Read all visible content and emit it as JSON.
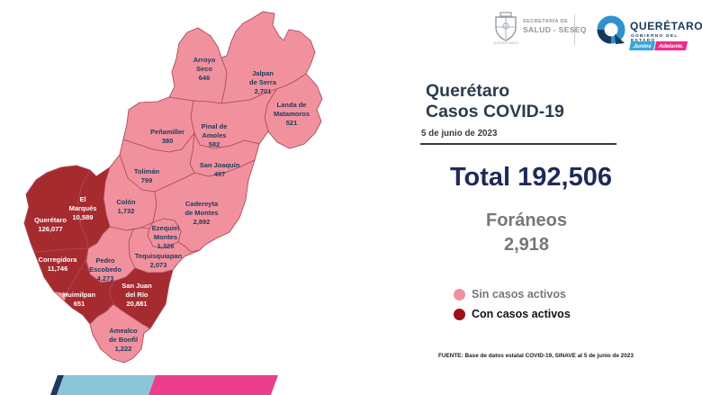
{
  "header": {
    "seseq": {
      "top": "SECRETARÍA DE",
      "bottom": "SALUD - SESEQ",
      "crest_caption": "QUERÉTARO"
    },
    "estado": {
      "brand": "QUERÉTARO",
      "subtitle": "GOBIERNO DEL ESTADO",
      "badge_left": "Juntos",
      "badge_right": "Adelante.",
      "badge_left_color": "#35a8dc",
      "badge_right_color": "#ec2e8a"
    }
  },
  "panel": {
    "title_line1": "Querétaro",
    "title_line2": "Casos COVID-19",
    "date": "5 de junio de 2023",
    "total_label": "Total",
    "total_value": "192,506",
    "foraneos_label": "Foráneos",
    "foraneos_value": "2,918",
    "legend": [
      {
        "label": "Sin casos activos",
        "swatch": "#f0919f"
      },
      {
        "label": "Con casos activos",
        "swatch": "#9b1016"
      }
    ],
    "source": "FUENTE: Base de datos estatal  COVID-19, SINAVE  al 5 de junio de 2023"
  },
  "map_colors": {
    "inactive": "#f2919e",
    "active": "#a62b2f",
    "border": "#a84c55",
    "label_inactive": "#1d3a5c",
    "label_active": "#ffffff"
  },
  "chart_data": {
    "type": "choropleth",
    "title": "Querétaro Casos COVID-19",
    "date": "5 de junio de 2023",
    "total": 192506,
    "foraneos": 2918,
    "legend": [
      "Sin casos activos",
      "Con casos activos"
    ],
    "municipalities": [
      {
        "id": "arroyo-seco",
        "name": "Arroyo Seco",
        "cases": 646,
        "active": false,
        "lines": [
          "Arroyo",
          "Seco",
          "646"
        ]
      },
      {
        "id": "jalpan",
        "name": "Jalpan de Serra",
        "cases": 2701,
        "active": false,
        "lines": [
          "Jalpan",
          "de Serra",
          "2,701"
        ]
      },
      {
        "id": "landa",
        "name": "Landa de Matamoros",
        "cases": 521,
        "active": false,
        "lines": [
          "Landa de",
          "Matamoros",
          "521"
        ]
      },
      {
        "id": "penamiller",
        "name": "Peñamiller",
        "cases": 380,
        "active": false,
        "lines": [
          "Peñamiller",
          "380"
        ]
      },
      {
        "id": "pinal",
        "name": "Pinal de Amoles",
        "cases": 582,
        "active": false,
        "lines": [
          "Pinal de",
          "Amoles",
          "582"
        ]
      },
      {
        "id": "san-joaquin",
        "name": "San Joaquín",
        "cases": 497,
        "active": false,
        "lines": [
          "San Joaquín",
          "497"
        ]
      },
      {
        "id": "toliman",
        "name": "Tolimán",
        "cases": 799,
        "active": false,
        "lines": [
          "Tolimán",
          "799"
        ]
      },
      {
        "id": "colon",
        "name": "Colón",
        "cases": 1732,
        "active": false,
        "lines": [
          "Colón",
          "1,732"
        ]
      },
      {
        "id": "cadereyta",
        "name": "Cadereyta de Montes",
        "cases": 2892,
        "active": false,
        "lines": [
          "Cadereyta",
          "de Montes",
          "2,892"
        ]
      },
      {
        "id": "ezequiel-montes",
        "name": "Ezequiel Montes",
        "cases": 1326,
        "active": false,
        "lines": [
          "Ezequiel",
          "Montes",
          "1,326"
        ]
      },
      {
        "id": "tequisquiapan",
        "name": "Tequisquiapan",
        "cases": 2073,
        "active": false,
        "lines": [
          "Tequisquiapan",
          "2,073"
        ]
      },
      {
        "id": "el-marques",
        "name": "El Marqués",
        "cases": 10589,
        "active": true,
        "lines": [
          "El",
          "Marqués",
          "10,589"
        ]
      },
      {
        "id": "queretaro",
        "name": "Querétaro",
        "cases": 126077,
        "active": true,
        "lines": [
          "Querétaro",
          "126,077"
        ]
      },
      {
        "id": "corregidora",
        "name": "Corregidora",
        "cases": 11746,
        "active": true,
        "lines": [
          "Corregidora",
          "11,746"
        ]
      },
      {
        "id": "pedro-escobedo",
        "name": "Pedro Escobedo",
        "cases": 4273,
        "active": false,
        "lines": [
          "Pedro",
          "Escobedo",
          "4,273"
        ]
      },
      {
        "id": "huimilpan",
        "name": "Huimilpan",
        "cases": 651,
        "active": true,
        "lines": [
          "Huimilpan",
          "651"
        ]
      },
      {
        "id": "san-juan-del-rio",
        "name": "San Juan del Río",
        "cases": 20881,
        "active": true,
        "lines": [
          "San Juan",
          "del Río",
          "20,881"
        ]
      },
      {
        "id": "amealco",
        "name": "Amealco de Bonfil",
        "cases": 1222,
        "active": false,
        "lines": [
          "Amealco",
          "de Bonfil",
          "1,222"
        ]
      }
    ]
  },
  "footer_bar": {
    "segments": [
      "#1e3a5f",
      "#8bc5d8",
      "#ec3e8c"
    ]
  }
}
